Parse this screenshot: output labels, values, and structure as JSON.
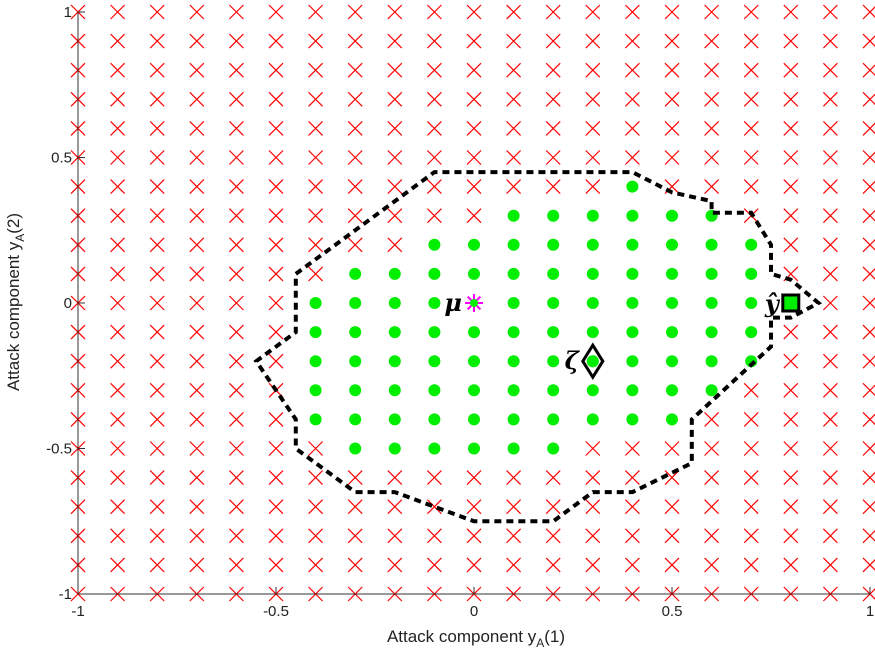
{
  "chart_data": {
    "type": "scatter",
    "title": "",
    "xlabel": {
      "main": "Attack component y",
      "sub": "A",
      "suffix": "(1)"
    },
    "ylabel": {
      "main": "Attack component y",
      "sub": "A",
      "suffix": "(2)"
    },
    "xlim": [
      -1,
      1
    ],
    "ylim": [
      -1,
      1
    ],
    "xticks": [
      -1,
      -0.5,
      0,
      0.5,
      1
    ],
    "xtick_labels": [
      "-1",
      "-0.5",
      "0",
      "0.5",
      "1"
    ],
    "yticks": [
      1,
      0.5,
      0,
      -0.5,
      -1
    ],
    "ytick_labels": [
      "1",
      "0.5",
      "0",
      "-0.5",
      "-1"
    ],
    "grid": false,
    "grid_step": 0.1,
    "colors": {
      "rejected": "#ff0000",
      "feasible": "#00ee00",
      "mu": "#ff00ff",
      "boundary": "#000000"
    },
    "feasible_rows": [
      {
        "y": 0.4,
        "x": [
          0.4
        ]
      },
      {
        "y": 0.3,
        "x": [
          0.1,
          0.2,
          0.3,
          0.4,
          0.5,
          0.6
        ]
      },
      {
        "y": 0.2,
        "x": [
          -0.1,
          0,
          0.1,
          0.2,
          0.3,
          0.4,
          0.5,
          0.6,
          0.7
        ]
      },
      {
        "y": 0.1,
        "x": [
          -0.3,
          -0.2,
          -0.1,
          0,
          0.1,
          0.2,
          0.3,
          0.4,
          0.5,
          0.6,
          0.7
        ]
      },
      {
        "y": 0.0,
        "x": [
          -0.4,
          -0.3,
          -0.2,
          -0.1,
          0.1,
          0.2,
          0.3,
          0.4,
          0.5,
          0.6,
          0.7,
          0.8
        ]
      },
      {
        "y": -0.1,
        "x": [
          -0.4,
          -0.3,
          -0.2,
          -0.1,
          0,
          0.1,
          0.2,
          0.3,
          0.4,
          0.5,
          0.6,
          0.7
        ]
      },
      {
        "y": -0.2,
        "x": [
          -0.4,
          -0.3,
          -0.2,
          -0.1,
          0,
          0.1,
          0.2,
          0.3,
          0.4,
          0.5,
          0.6,
          0.7
        ]
      },
      {
        "y": -0.3,
        "x": [
          -0.4,
          -0.3,
          -0.2,
          -0.1,
          0,
          0.1,
          0.2,
          0.3,
          0.4,
          0.5,
          0.6
        ]
      },
      {
        "y": -0.4,
        "x": [
          -0.4,
          -0.3,
          -0.2,
          -0.1,
          0,
          0.1,
          0.2,
          0.3,
          0.4,
          0.5
        ]
      },
      {
        "y": -0.5,
        "x": [
          -0.3,
          -0.2,
          -0.1,
          0,
          0.1,
          0.2
        ]
      }
    ],
    "boundary": [
      [
        -0.45,
        0.1
      ],
      [
        -0.1,
        0.45
      ],
      [
        0.4,
        0.45
      ],
      [
        0.5,
        0.38
      ],
      [
        0.6,
        0.35
      ],
      [
        0.6,
        0.31
      ],
      [
        0.7,
        0.31
      ],
      [
        0.75,
        0.2
      ],
      [
        0.75,
        0.1
      ],
      [
        0.8,
        0.08
      ],
      [
        0.87,
        0
      ],
      [
        0.8,
        -0.05
      ],
      [
        0.75,
        -0.05
      ],
      [
        0.75,
        -0.15
      ],
      [
        0.55,
        -0.4
      ],
      [
        0.55,
        -0.55
      ],
      [
        0.4,
        -0.65
      ],
      [
        0.3,
        -0.65
      ],
      [
        0.2,
        -0.75
      ],
      [
        0,
        -0.75
      ],
      [
        -0.2,
        -0.65
      ],
      [
        -0.3,
        -0.65
      ],
      [
        -0.45,
        -0.5
      ],
      [
        -0.45,
        -0.4
      ],
      [
        -0.55,
        -0.2
      ],
      [
        -0.45,
        -0.1
      ]
    ],
    "annotations": [
      {
        "label": "μ",
        "x": 0,
        "y": 0,
        "marker": "asterisk"
      },
      {
        "label": "ζ",
        "x": 0.3,
        "y": -0.2,
        "marker": "diamond"
      },
      {
        "label": "ŷ",
        "x": 0.8,
        "y": 0,
        "marker": "square"
      }
    ]
  }
}
